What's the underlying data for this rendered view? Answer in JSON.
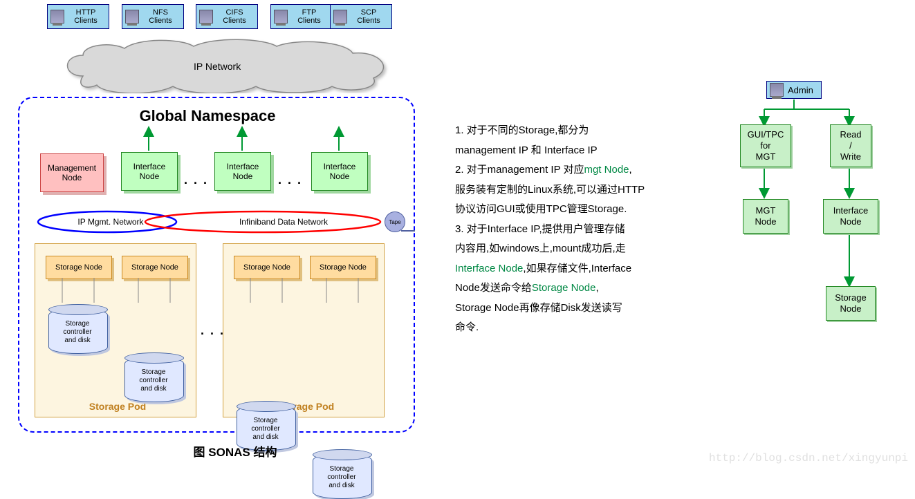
{
  "colors": {
    "client_bg": "#a0d8ef",
    "client_border": "#000080",
    "namespace_border": "#0000ff",
    "mgmt_bg": "#ffc0c0",
    "mgmt_border": "#cc4444",
    "interface_bg": "#c0ffc0",
    "interface_border": "#228822",
    "storage_pod_bg": "#fdf5e0",
    "storage_pod_border": "#d2a040",
    "storage_node_bg": "#ffdca0",
    "storage_node_border": "#c88820",
    "cylinder_bg": "#e0e8ff",
    "cylinder_border": "#4060a0",
    "tape_bg": "#a8b0e0",
    "ip_mgmt_ellipse": "#0000ff",
    "infiniband_ellipse": "#ff0000",
    "cloud_fill": "#d9d9d9",
    "cloud_stroke": "#888888",
    "arrow_green": "#009933",
    "right_box_bg": "#c8f0c8",
    "desc_highlight": "#008844",
    "watermark": "#e0e0e0"
  },
  "clients": [
    {
      "label": "HTTP\nClients"
    },
    {
      "label": "NFS\nClients"
    },
    {
      "label": "CIFS\nClients"
    },
    {
      "label": "FTP\nClients"
    },
    {
      "label": "SCP\nClients"
    }
  ],
  "cloud_label": "IP Network",
  "namespace_title": "Global Namespace",
  "mgmt_node_label": "Management\nNode",
  "interface_node_label": "Interface\nNode",
  "ip_mgmt_label": "IP Mgmt. Network",
  "infiniband_label": "Infiniband Data Network",
  "tape_label": "Tape",
  "storage_node_label": "Storage Node",
  "storage_controller_label": "Storage\ncontroller\nand disk",
  "storage_pod_label": "Storage Pod",
  "dots": ". . .",
  "caption": "图   SONAS 结构",
  "description": {
    "line1_a": "1. 对于不同的Storage,都分为",
    "line1_b": "management IP 和 Interface IP",
    "line2_a": "2. 对于management IP 对应",
    "line2_mgt": "mgt Node",
    "line2_b": ",",
    "line3": "服务装有定制的Linux系统,可以通过HTTP",
    "line4": "协议访问GUI或使用TPC管理Storage.",
    "line5": "3. 对于Interface IP,提供用户管理存储",
    "line6": "内容用,如windows上,mount成功后,走",
    "line7_iface": "Interface Node",
    "line7_b": ",如果存储文件,Interface",
    "line8_a": " Node发送命令给",
    "line8_storage": "Storage Node",
    "line8_b": ",",
    "line9": "Storage Node再像存储Disk发送读写",
    "line10": "命令."
  },
  "right": {
    "admin": "Admin",
    "gui_tpc": "GUI/TPC\nfor\nMGT",
    "read_write": "Read\n/\nWrite",
    "mgt_node": "MGT\nNode",
    "interface_node": "Interface\nNode",
    "storage_node": "Storage\nNode"
  },
  "watermark": "http://blog.csdn.net/xingyunpi"
}
